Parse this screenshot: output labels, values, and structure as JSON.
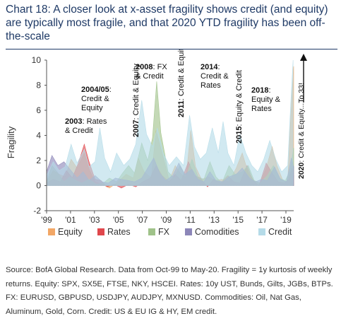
{
  "title": "Chart 18: A closer look at x-asset fragility shows credit (and equity) are typically most fragile, and that 2020 YTD fragility has been off-the-scale",
  "source": "Source: BofA Global Research. Data from Oct-99 to May-20. Fragility = 1y kurtosis of weekly returns. Equity: SPX, SX5E, FTSE, NKY, HSCEI. Rates: 10y UST, Bunds, Gilts, JGBs, BTPs. FX: EURUSD, GBPUSD, USDJPY, AUDJPY, MXNUSD. Commodities: Oil, Nat Gas, Aluminum, Gold, Corn. Credit: US & EU IG & HY, EM credit.",
  "chart_data": {
    "type": "area",
    "ylabel": "Fragility",
    "xlabel": "",
    "ylim": [
      -2,
      10
    ],
    "yticks": [
      -2,
      0,
      2,
      4,
      6,
      8,
      10
    ],
    "xlim": [
      1999.75,
      2020.4
    ],
    "xticks": [
      {
        "value": 1999.75,
        "label": "'99"
      },
      {
        "value": 2001.75,
        "label": "'01"
      },
      {
        "value": 2003.75,
        "label": "'03"
      },
      {
        "value": 2005.75,
        "label": "'05"
      },
      {
        "value": 2007.75,
        "label": "'07"
      },
      {
        "value": 2009.75,
        "label": "'09"
      },
      {
        "value": 2011.75,
        "label": "'11"
      },
      {
        "value": 2013.75,
        "label": "'13"
      },
      {
        "value": 2015.75,
        "label": "'15"
      },
      {
        "value": 2017.75,
        "label": "'17"
      },
      {
        "value": 2019.75,
        "label": "'19"
      }
    ],
    "legend_position": "bottom",
    "series": [
      {
        "name": "Equity",
        "color": "#f2a766",
        "points": [
          [
            1999.75,
            0.3
          ],
          [
            2000.3,
            1.2
          ],
          [
            2000.8,
            0.9
          ],
          [
            2001.3,
            0.7
          ],
          [
            2001.8,
            2.1
          ],
          [
            2002.3,
            1.4
          ],
          [
            2002.9,
            2.6
          ],
          [
            2003.3,
            1.3
          ],
          [
            2003.8,
            0.3
          ],
          [
            2004.4,
            0.1
          ],
          [
            2005.0,
            -0.2
          ],
          [
            2005.6,
            0.2
          ],
          [
            2006.4,
            0.9
          ],
          [
            2007.0,
            0.6
          ],
          [
            2007.4,
            2.2
          ],
          [
            2007.9,
            1.1
          ],
          [
            2008.5,
            0.6
          ],
          [
            2008.9,
            4.4
          ],
          [
            2009.4,
            2.6
          ],
          [
            2010.0,
            0.4
          ],
          [
            2010.5,
            1.6
          ],
          [
            2010.9,
            1.0
          ],
          [
            2011.4,
            0.6
          ],
          [
            2011.8,
            4.4
          ],
          [
            2012.2,
            1.5
          ],
          [
            2012.7,
            0.5
          ],
          [
            2013.3,
            0.7
          ],
          [
            2013.8,
            0.4
          ],
          [
            2014.4,
            0.5
          ],
          [
            2015.0,
            0.3
          ],
          [
            2015.6,
            1.4
          ],
          [
            2016.1,
            2.6
          ],
          [
            2016.6,
            1.0
          ],
          [
            2017.1,
            0.4
          ],
          [
            2017.6,
            0.2
          ],
          [
            2018.1,
            1.4
          ],
          [
            2018.6,
            3.1
          ],
          [
            2019.0,
            1.6
          ],
          [
            2019.5,
            0.4
          ],
          [
            2019.9,
            0.3
          ],
          [
            2020.15,
            5.5
          ],
          [
            2020.4,
            9.5
          ]
        ]
      },
      {
        "name": "Rates",
        "color": "#e0474c",
        "points": [
          [
            1999.75,
            0.2
          ],
          [
            2000.3,
            0.5
          ],
          [
            2000.9,
            0.3
          ],
          [
            2001.4,
            1.2
          ],
          [
            2001.9,
            0.6
          ],
          [
            2002.4,
            1.8
          ],
          [
            2002.9,
            3.3
          ],
          [
            2003.3,
            1.9
          ],
          [
            2003.8,
            0.5
          ],
          [
            2004.3,
            0.4
          ],
          [
            2004.8,
            -0.1
          ],
          [
            2005.4,
            0.1
          ],
          [
            2006.0,
            -0.2
          ],
          [
            2006.6,
            0.1
          ],
          [
            2007.2,
            -0.1
          ],
          [
            2007.8,
            0.3
          ],
          [
            2008.4,
            0.6
          ],
          [
            2008.9,
            1.6
          ],
          [
            2009.4,
            0.8
          ],
          [
            2010.0,
            0.3
          ],
          [
            2010.5,
            0.9
          ],
          [
            2011.0,
            0.4
          ],
          [
            2011.6,
            1.9
          ],
          [
            2012.1,
            0.8
          ],
          [
            2012.6,
            0.6
          ],
          [
            2013.2,
            -0.1
          ],
          [
            2013.7,
            0.5
          ],
          [
            2014.3,
            0.2
          ],
          [
            2014.9,
            0.8
          ],
          [
            2015.4,
            0.3
          ],
          [
            2015.9,
            0.2
          ],
          [
            2016.5,
            1.6
          ],
          [
            2017.0,
            0.4
          ],
          [
            2017.5,
            0.0
          ],
          [
            2018.1,
            1.8
          ],
          [
            2018.6,
            1.0
          ],
          [
            2019.1,
            0.3
          ],
          [
            2019.6,
            0.2
          ],
          [
            2020.0,
            0.5
          ],
          [
            2020.25,
            1.4
          ],
          [
            2020.4,
            0.8
          ]
        ]
      },
      {
        "name": "FX",
        "color": "#9fc289",
        "points": [
          [
            1999.75,
            0.3
          ],
          [
            2000.2,
            1.6
          ],
          [
            2000.7,
            1.0
          ],
          [
            2001.2,
            0.3
          ],
          [
            2001.7,
            0.7
          ],
          [
            2002.2,
            0.4
          ],
          [
            2002.7,
            0.2
          ],
          [
            2003.3,
            0.5
          ],
          [
            2003.9,
            0.1
          ],
          [
            2004.5,
            0.2
          ],
          [
            2005.0,
            0.6
          ],
          [
            2005.6,
            0.3
          ],
          [
            2006.1,
            1.0
          ],
          [
            2006.6,
            1.6
          ],
          [
            2007.1,
            1.0
          ],
          [
            2007.7,
            3.4
          ],
          [
            2008.2,
            2.0
          ],
          [
            2008.6,
            3.8
          ],
          [
            2008.95,
            8.3
          ],
          [
            2009.3,
            4.2
          ],
          [
            2009.9,
            1.1
          ],
          [
            2010.4,
            0.6
          ],
          [
            2010.9,
            1.6
          ],
          [
            2011.4,
            0.7
          ],
          [
            2011.9,
            2.1
          ],
          [
            2012.4,
            0.7
          ],
          [
            2012.9,
            0.5
          ],
          [
            2013.4,
            1.9
          ],
          [
            2013.9,
            0.7
          ],
          [
            2014.4,
            0.2
          ],
          [
            2015.0,
            1.6
          ],
          [
            2015.5,
            0.9
          ],
          [
            2016.1,
            1.1
          ],
          [
            2016.6,
            1.6
          ],
          [
            2017.1,
            0.4
          ],
          [
            2017.6,
            0.2
          ],
          [
            2018.2,
            0.8
          ],
          [
            2018.7,
            1.6
          ],
          [
            2019.2,
            0.6
          ],
          [
            2019.7,
            0.4
          ],
          [
            2020.1,
            1.2
          ],
          [
            2020.4,
            3.0
          ]
        ]
      },
      {
        "name": "Comodities",
        "color": "#8c86b8",
        "points": [
          [
            1999.75,
            1.1
          ],
          [
            2000.2,
            2.4
          ],
          [
            2000.7,
            1.6
          ],
          [
            2001.2,
            1.9
          ],
          [
            2001.7,
            1.3
          ],
          [
            2002.3,
            0.6
          ],
          [
            2002.8,
            1.1
          ],
          [
            2003.3,
            0.4
          ],
          [
            2003.8,
            0.8
          ],
          [
            2004.4,
            0.3
          ],
          [
            2004.9,
            0.2
          ],
          [
            2005.5,
            0.6
          ],
          [
            2006.0,
            0.5
          ],
          [
            2006.6,
            0.4
          ],
          [
            2007.1,
            0.3
          ],
          [
            2007.7,
            0.6
          ],
          [
            2008.2,
            1.4
          ],
          [
            2008.7,
            2.2
          ],
          [
            2009.2,
            1.0
          ],
          [
            2009.7,
            0.4
          ],
          [
            2010.3,
            0.8
          ],
          [
            2010.8,
            1.8
          ],
          [
            2011.3,
            0.9
          ],
          [
            2011.9,
            1.3
          ],
          [
            2012.4,
            0.5
          ],
          [
            2012.9,
            0.3
          ],
          [
            2013.4,
            1.1
          ],
          [
            2013.9,
            0.4
          ],
          [
            2014.5,
            0.3
          ],
          [
            2015.0,
            0.7
          ],
          [
            2015.6,
            0.9
          ],
          [
            2016.1,
            1.4
          ],
          [
            2016.7,
            0.6
          ],
          [
            2017.2,
            0.3
          ],
          [
            2017.7,
            0.5
          ],
          [
            2018.2,
            0.4
          ],
          [
            2018.8,
            1.5
          ],
          [
            2019.3,
            0.5
          ],
          [
            2019.8,
            0.3
          ],
          [
            2020.2,
            2.2
          ],
          [
            2020.4,
            1.5
          ]
        ]
      },
      {
        "name": "Credit",
        "color": "#b5dbe8",
        "points": [
          [
            1999.75,
            0.8
          ],
          [
            2000.3,
            1.9
          ],
          [
            2000.8,
            1.2
          ],
          [
            2001.3,
            1.5
          ],
          [
            2001.8,
            3.3
          ],
          [
            2002.3,
            1.8
          ],
          [
            2002.9,
            2.9
          ],
          [
            2003.3,
            1.5
          ],
          [
            2003.8,
            1.9
          ],
          [
            2004.2,
            4.6
          ],
          [
            2004.6,
            2.2
          ],
          [
            2005.1,
            1.1
          ],
          [
            2005.6,
            2.6
          ],
          [
            2006.2,
            1.6
          ],
          [
            2006.7,
            2.1
          ],
          [
            2007.2,
            3.3
          ],
          [
            2007.7,
            6.8
          ],
          [
            2008.1,
            4.1
          ],
          [
            2008.6,
            3.1
          ],
          [
            2009.0,
            4.6
          ],
          [
            2009.5,
            2.6
          ],
          [
            2010.0,
            1.6
          ],
          [
            2010.6,
            2.3
          ],
          [
            2011.2,
            1.6
          ],
          [
            2011.7,
            5.6
          ],
          [
            2012.1,
            3.1
          ],
          [
            2012.6,
            2.1
          ],
          [
            2013.1,
            2.6
          ],
          [
            2013.6,
            4.6
          ],
          [
            2014.1,
            2.6
          ],
          [
            2014.5,
            5.1
          ],
          [
            2014.9,
            2.6
          ],
          [
            2015.4,
            1.6
          ],
          [
            2015.9,
            4.1
          ],
          [
            2016.4,
            2.6
          ],
          [
            2016.9,
            1.6
          ],
          [
            2017.4,
            1.1
          ],
          [
            2017.9,
            2.1
          ],
          [
            2018.4,
            3.6
          ],
          [
            2018.9,
            2.1
          ],
          [
            2019.4,
            1.1
          ],
          [
            2019.9,
            1.6
          ],
          [
            2020.15,
            6.5
          ],
          [
            2020.35,
            10.0
          ]
        ]
      }
    ],
    "annotations": [
      {
        "id": "ann-2003",
        "year": "2003",
        "text": ": Rates & Credit",
        "lines": [
          "2003: Rates",
          "& Credit"
        ],
        "vertical": false
      },
      {
        "id": "ann-2004",
        "year": "2004/05",
        "text": ": Credit & Equity",
        "lines": [
          "2004/05:",
          "Credit &",
          "Equity"
        ],
        "vertical": false
      },
      {
        "id": "ann-2007",
        "year": "2007",
        "text": ": Credit & Equity",
        "vertical": true
      },
      {
        "id": "ann-2008",
        "year": "2008",
        "text": ": FX & Credit",
        "lines": [
          "2008: FX",
          "& Credit"
        ],
        "vertical": false
      },
      {
        "id": "ann-2011",
        "year": "2011",
        "text": ": Credit & Equity",
        "vertical": true
      },
      {
        "id": "ann-2014",
        "year": "2014",
        "text": ": Credit & Rates",
        "lines": [
          "2014:",
          "Credit &",
          "Rates"
        ],
        "vertical": false
      },
      {
        "id": "ann-2015",
        "year": "2015",
        "text": ": Equity & Credit",
        "vertical": true
      },
      {
        "id": "ann-2018",
        "year": "2018",
        "text": ": Equity & Rates",
        "lines": [
          "2018:",
          "Equity &",
          "Rates"
        ],
        "vertical": false
      },
      {
        "id": "ann-2020",
        "year": "2020",
        "text": ": Credit & Equity...To 33!",
        "vertical": true
      }
    ]
  }
}
